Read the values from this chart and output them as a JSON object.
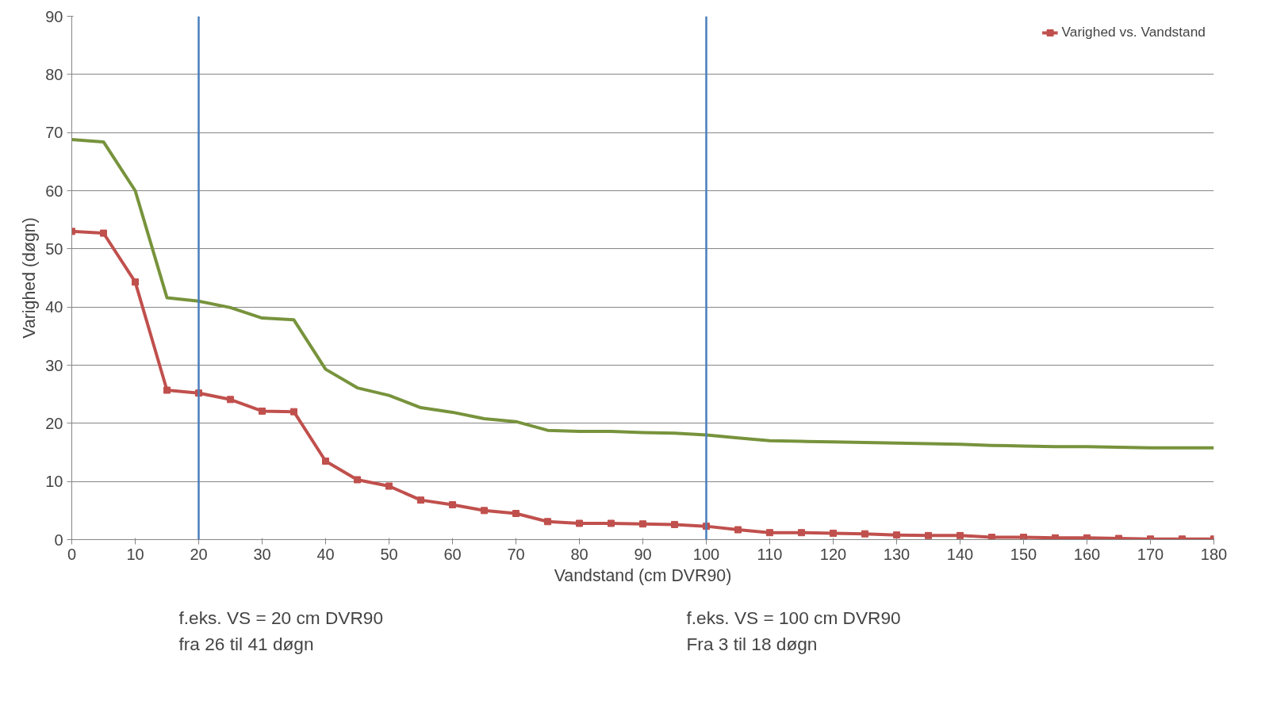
{
  "chart_data": {
    "type": "line",
    "xlabel": "Vandstand (cm DVR90)",
    "ylabel": "Varighed (døgn)",
    "x": [
      0,
      5,
      10,
      15,
      20,
      25,
      30,
      35,
      40,
      45,
      50,
      55,
      60,
      65,
      70,
      75,
      80,
      85,
      90,
      95,
      100,
      105,
      110,
      115,
      120,
      125,
      130,
      135,
      140,
      145,
      150,
      155,
      160,
      165,
      170,
      175,
      180
    ],
    "series": [
      {
        "name": "Varighed vs. Vandstand",
        "color": "#c0504d",
        "marker": "square",
        "values": [
          53.0,
          52.7,
          44.3,
          25.7,
          25.2,
          24.1,
          22.1,
          22.0,
          13.5,
          10.3,
          9.2,
          6.8,
          6.0,
          5.0,
          4.5,
          3.1,
          2.8,
          2.8,
          2.7,
          2.6,
          2.3,
          1.7,
          1.2,
          1.2,
          1.1,
          1.0,
          0.8,
          0.7,
          0.7,
          0.4,
          0.4,
          0.3,
          0.3,
          0.2,
          0.1,
          0.1,
          0.1
        ]
      },
      {
        "color": "#77933c",
        "marker": "none",
        "values": [
          68.8,
          68.4,
          60.0,
          41.6,
          41.0,
          39.9,
          38.1,
          37.8,
          29.3,
          26.1,
          24.8,
          22.7,
          21.9,
          20.8,
          20.3,
          18.8,
          18.6,
          18.6,
          18.4,
          18.3,
          18.0,
          17.5,
          17.0,
          16.9,
          16.8,
          16.7,
          16.6,
          16.5,
          16.4,
          16.2,
          16.1,
          16.0,
          16.0,
          15.9,
          15.8,
          15.8,
          15.8
        ]
      }
    ],
    "xlim": [
      0,
      180
    ],
    "xticks": [
      0,
      10,
      20,
      30,
      40,
      50,
      60,
      70,
      80,
      90,
      100,
      110,
      120,
      130,
      140,
      150,
      160,
      170,
      180
    ],
    "ylim": [
      0,
      90
    ],
    "yticks": [
      0,
      10,
      20,
      30,
      40,
      50,
      60,
      70,
      80,
      90
    ],
    "grid": "y",
    "legend": "top right",
    "line_style": "solid",
    "ref_lines": [
      {
        "axis": "x",
        "value": 20,
        "color": "#4a7ebb"
      },
      {
        "axis": "x",
        "value": 100,
        "color": "#4a7ebb"
      }
    ],
    "annotations": [
      "f.eks. VS = 20 cm DVR90\nfra 26 til 41 døgn",
      "f.eks. VS = 100 cm DVR90\nFra 3 til 18 døgn"
    ]
  }
}
